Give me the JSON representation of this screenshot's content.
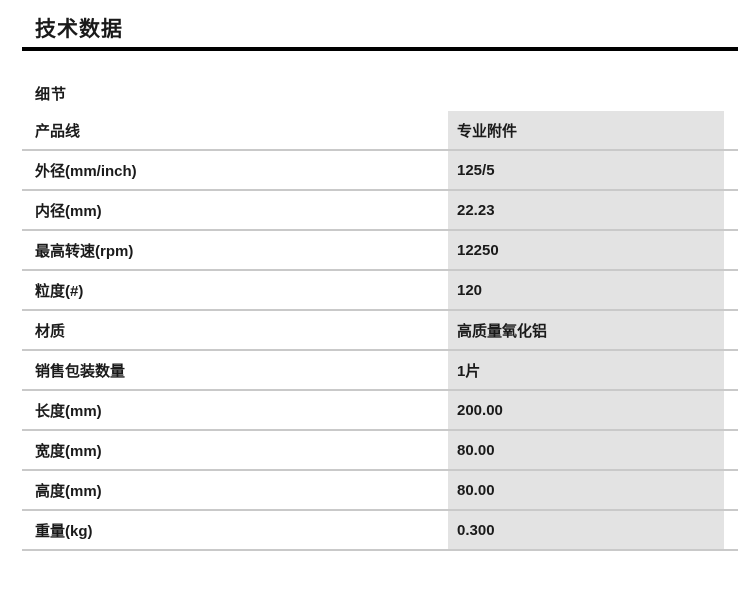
{
  "page": {
    "title": "技术数据",
    "section_heading": "细节"
  },
  "table": {
    "rows": [
      {
        "label": "产品线",
        "value": "专业附件"
      },
      {
        "label": "外径(mm/inch)",
        "value": "125/5"
      },
      {
        "label": "内径(mm)",
        "value": "22.23"
      },
      {
        "label": "最高转速(rpm)",
        "value": "12250"
      },
      {
        "label": "粒度(#)",
        "value": "120"
      },
      {
        "label": "材质",
        "value": "高质量氧化铝"
      },
      {
        "label": "销售包装数量",
        "value": "1片"
      },
      {
        "label": "长度(mm)",
        "value": "200.00"
      },
      {
        "label": "宽度(mm)",
        "value": "80.00"
      },
      {
        "label": "高度(mm)",
        "value": "80.00"
      },
      {
        "label": "重量(kg)",
        "value": "0.300"
      }
    ]
  },
  "colors": {
    "value_column_bg": "#e3e3e3",
    "row_divider": "#c9c9c9",
    "title_underline": "#000000",
    "text": "#1a1a1a"
  }
}
